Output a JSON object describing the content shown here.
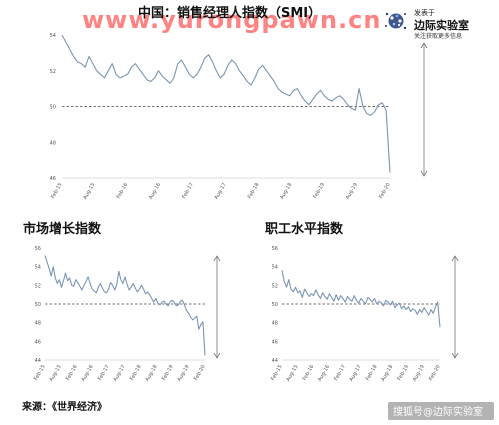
{
  "watermark": "www.yurongpawn.cn",
  "brand": {
    "published_by": "发表于",
    "name": "边际实验室",
    "tagline": "关注获取更多信息"
  },
  "source": "来源：《世界经济》",
  "credit": "搜狐号@边际实验室",
  "colors": {
    "line": "#7b95b3",
    "ref": "#444444",
    "axis": "#bbbbbb",
    "arrow": "#777777"
  },
  "chart_data": [
    {
      "type": "line",
      "title": "中国：销售经理人指数（SMI）",
      "xlabel": "",
      "ylabel": "",
      "ylim": [
        46,
        54
      ],
      "yticks": [
        46,
        48,
        50,
        52,
        54
      ],
      "xticks": [
        "Feb-15",
        "Aug-15",
        "Feb-16",
        "Aug-16",
        "Feb-17",
        "Aug-17",
        "Feb-18",
        "Aug-18",
        "Feb-19",
        "Aug-19",
        "Feb-20"
      ],
      "reference_line": 50,
      "series": [
        {
          "values": [
            54.0,
            53.6,
            53.2,
            52.8,
            52.5,
            52.4,
            52.2,
            52.8,
            52.4,
            52.0,
            51.8,
            51.6,
            52.0,
            52.4,
            51.8,
            51.6,
            51.7,
            51.8,
            52.2,
            52.4,
            52.1,
            51.8,
            51.5,
            51.4,
            51.6,
            52.0,
            51.7,
            51.5,
            51.3,
            51.6,
            52.4,
            52.6,
            52.2,
            51.8,
            51.6,
            51.8,
            52.2,
            52.7,
            52.9,
            52.5,
            52.0,
            51.6,
            51.8,
            52.3,
            52.6,
            52.4,
            52.0,
            51.7,
            51.4,
            51.2,
            51.6,
            52.1,
            52.3,
            52.0,
            51.7,
            51.4,
            51.0,
            50.8,
            50.7,
            50.6,
            50.9,
            51.0,
            50.6,
            50.3,
            50.1,
            50.4,
            50.7,
            50.9,
            50.6,
            50.4,
            50.3,
            50.5,
            50.6,
            50.4,
            50.1,
            49.9,
            49.8,
            51.0,
            50.0,
            49.6,
            49.5,
            49.7,
            50.1,
            50.2,
            49.8,
            46.3
          ]
        }
      ]
    },
    {
      "type": "line",
      "title": "市场增长指数",
      "xlabel": "",
      "ylabel": "",
      "ylim": [
        44,
        56
      ],
      "yticks": [
        44,
        46,
        48,
        50,
        52,
        54,
        56
      ],
      "xticks": [
        "Feb-15",
        "Aug-15",
        "Feb-16",
        "Aug-16",
        "Feb-17",
        "Aug-17",
        "Feb-18",
        "Aug-18",
        "Feb-19",
        "Aug-19",
        "Feb-20"
      ],
      "reference_line": 50,
      "series": [
        {
          "values": [
            55.2,
            54.5,
            53.8,
            53.0,
            54.0,
            52.8,
            52.2,
            52.6,
            51.8,
            52.5,
            53.3,
            52.5,
            52.8,
            52.0,
            51.9,
            52.6,
            52.3,
            51.9,
            51.5,
            52.0,
            52.4,
            52.9,
            52.2,
            51.6,
            51.4,
            51.2,
            51.8,
            52.2,
            51.7,
            51.3,
            51.2,
            51.6,
            52.3,
            52.0,
            51.5,
            52.1,
            53.5,
            52.6,
            52.2,
            52.9,
            52.1,
            51.5,
            51.8,
            52.2,
            51.7,
            51.3,
            51.6,
            52.0,
            51.6,
            51.1,
            51.3,
            51.0,
            50.6,
            50.2,
            50.6,
            50.1,
            49.9,
            50.2,
            50.3,
            50.0,
            49.8,
            50.2,
            50.4,
            50.2,
            49.8,
            49.9,
            50.3,
            50.4,
            49.9,
            49.3,
            49.0,
            48.6,
            48.3,
            48.5,
            48.7,
            47.3,
            47.8,
            48.1,
            44.5
          ]
        }
      ]
    },
    {
      "type": "line",
      "title": "职工水平指数",
      "xlabel": "",
      "ylabel": "",
      "ylim": [
        44,
        56
      ],
      "yticks": [
        44,
        46,
        48,
        50,
        52,
        54,
        56
      ],
      "xticks": [
        "Feb-15",
        "Aug-15",
        "Feb-16",
        "Aug-16",
        "Feb-17",
        "Aug-17",
        "Feb-18",
        "Aug-18",
        "Feb-19",
        "Aug-19",
        "Feb-20"
      ],
      "reference_line": 50,
      "series": [
        {
          "values": [
            53.6,
            52.4,
            51.8,
            52.6,
            51.6,
            51.3,
            51.8,
            51.2,
            51.4,
            50.7,
            51.6,
            51.2,
            50.8,
            51.1,
            50.9,
            51.5,
            51.0,
            50.6,
            51.2,
            50.8,
            50.5,
            51.1,
            50.7,
            50.3,
            51.0,
            50.4,
            50.9,
            50.6,
            50.2,
            50.8,
            50.5,
            50.3,
            50.9,
            50.4,
            50.1,
            50.6,
            50.3,
            50.0,
            50.7,
            50.5,
            50.2,
            50.6,
            50.0,
            50.3,
            50.1,
            49.8,
            50.4,
            50.2,
            49.9,
            50.3,
            49.6,
            49.9,
            50.1,
            49.5,
            49.8,
            49.4,
            49.7,
            49.2,
            49.5,
            49.3,
            48.9,
            49.4,
            49.1,
            49.6,
            49.2,
            48.8,
            49.4,
            49.0,
            49.7,
            50.2,
            47.5
          ]
        }
      ]
    }
  ]
}
